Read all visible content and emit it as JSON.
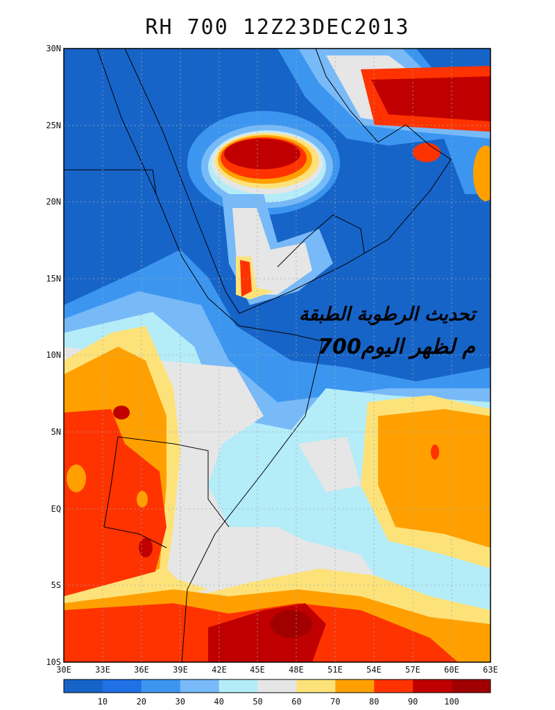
{
  "title": "RH 700 12Z23DEC2013",
  "overlay_text": {
    "line1": "تحديث الرطوبة الطبقة",
    "line2": "700م لظهر اليوم"
  },
  "lat_labels": [
    "30N",
    "25N",
    "20N",
    "15N",
    "10N",
    "5N",
    "EQ",
    "5S",
    "10S"
  ],
  "lon_labels": [
    "30E",
    "33E",
    "36E",
    "39E",
    "42E",
    "45E",
    "48E",
    "51E",
    "54E",
    "57E",
    "60E",
    "63E"
  ],
  "colorbar": {
    "labels": [
      "10",
      "20",
      "30",
      "40",
      "50",
      "60",
      "70",
      "80",
      "90",
      "100"
    ],
    "colors": [
      "#1764c8",
      "#2070e6",
      "#3c96f0",
      "#78b9f8",
      "#b4ecf8",
      "#e6e6e6",
      "#fde27a",
      "#ffa000",
      "#ff3300",
      "#c00000",
      "#a00000"
    ]
  }
}
